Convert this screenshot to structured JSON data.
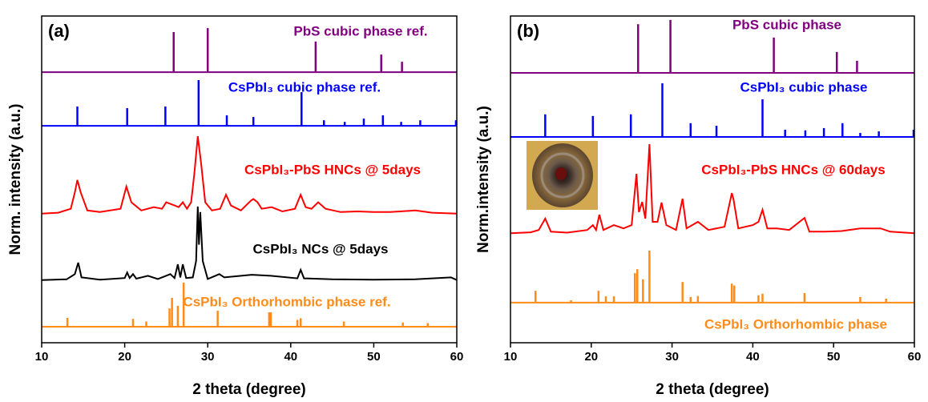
{
  "chart_data": [
    {
      "type": "line",
      "title": "(a)",
      "x_label": "2 theta (degree)",
      "y_label": "Norm. intensity (a.u.)",
      "xlim": [
        10,
        60
      ],
      "xticks": [
        10,
        20,
        30,
        40,
        50,
        60
      ],
      "ylim": [
        0,
        100
      ],
      "series": [
        {
          "name": "PbS cubic phase ref.",
          "color": "#800080",
          "kind": "stick",
          "baseline": 82.8,
          "x": [
            25.9,
            30.0,
            43.0,
            50.9,
            53.4
          ],
          "values": [
            95.1,
            96.3,
            92.2,
            88.2,
            86.0
          ]
        },
        {
          "name": "CsPbI₃ cubic phase ref.",
          "color": "#0000ff",
          "kind": "stick",
          "baseline": 66.4,
          "x": [
            14.3,
            20.3,
            24.9,
            28.9,
            32.3,
            35.5,
            41.3,
            44.0,
            46.5,
            48.8,
            51.1,
            53.3,
            55.6,
            59.9
          ],
          "values": [
            72.3,
            71.8,
            72.3,
            80.4,
            69.6,
            69.1,
            76.7,
            68.1,
            67.6,
            68.6,
            69.6,
            67.6,
            68.1,
            68.1
          ]
        },
        {
          "name": "CsPbI₃-PbS HNCs @ 5days",
          "color": "#ff0000",
          "kind": "line",
          "x": [
            10,
            12,
            13.5,
            14,
            14.3,
            14.7,
            15.5,
            17,
            19.5,
            20.2,
            20.8,
            22,
            23.5,
            24.5,
            25,
            25.5,
            26,
            26.5,
            27,
            27.5,
            28,
            28.4,
            28.8,
            29.2,
            29.7,
            30.5,
            31.5,
            32.2,
            32.8,
            34,
            35.2,
            35.5,
            36,
            36.5,
            37.7,
            39,
            40.5,
            41.2,
            41.8,
            42.5,
            43.3,
            44.2,
            46,
            48,
            50,
            52,
            55,
            57,
            60
          ],
          "values": [
            39.5,
            39.8,
            41,
            46,
            49.8,
            46,
            40.5,
            40,
            41,
            47.8,
            43,
            40.5,
            41.5,
            41,
            43,
            42.5,
            42,
            41.5,
            43,
            41,
            43,
            52,
            63.2,
            55,
            43,
            40.5,
            41,
            45.3,
            42,
            40.5,
            43.5,
            44,
            43,
            41,
            41.5,
            40.2,
            41,
            45.3,
            41.5,
            41,
            43,
            41,
            40,
            40.2,
            40,
            40,
            40.5,
            39.8,
            39.5
          ]
        },
        {
          "name": "CsPbI₃ NCs @ 5days",
          "color": "#000000",
          "kind": "line",
          "x": [
            10,
            13,
            14,
            14.4,
            14.8,
            17,
            20,
            20.3,
            20.6,
            21,
            21.4,
            22.8,
            24,
            25.5,
            26,
            26.4,
            26.7,
            27,
            27.4,
            28.2,
            28.6,
            28.8,
            28.95,
            29.1,
            29.4,
            30,
            31.4,
            32,
            35.3,
            37.6,
            40.8,
            41.2,
            41.6,
            45,
            50,
            55,
            59.3,
            60
          ],
          "values": [
            19.2,
            19.4,
            21,
            24.5,
            20,
            19.3,
            19.8,
            21.5,
            19.8,
            21,
            19.6,
            20.5,
            19.5,
            21,
            19.8,
            24,
            20,
            24,
            19.8,
            20,
            25,
            41.7,
            30,
            40,
            25,
            19.5,
            21,
            20,
            20.8,
            20.5,
            19.7,
            22.3,
            19.7,
            19.4,
            19.3,
            19.4,
            20,
            19.2
          ]
        },
        {
          "name": "CsPbI₃ Orthorhombic phase ref.",
          "color": "#ff8c1a",
          "kind": "stick",
          "baseline": 4.9,
          "x": [
            13.1,
            21.0,
            22.6,
            25.4,
            25.7,
            26.4,
            27.1,
            31.2,
            37.4,
            37.6,
            40.8,
            41.2,
            46.4,
            53.5,
            56.5
          ],
          "values": [
            7.6,
            7.3,
            6.5,
            10.5,
            13.7,
            11.3,
            18.4,
            9.8,
            9.3,
            9.3,
            7,
            7.5,
            6.5,
            6.2,
            6
          ]
        }
      ]
    },
    {
      "type": "line",
      "title": "(b)",
      "x_label": "2 theta (degree)",
      "y_label": "Norm.intensity (a.u.)",
      "xlim": [
        10,
        60
      ],
      "xticks": [
        10,
        20,
        30,
        40,
        50,
        60
      ],
      "ylim": [
        0,
        100
      ],
      "series": [
        {
          "name": "PbS cubic phase",
          "color": "#800080",
          "kind": "stick",
          "baseline": 82.6,
          "x": [
            25.8,
            29.8,
            42.6,
            50.4,
            52.9
          ],
          "values": [
            97.5,
            98.8,
            93.4,
            89,
            86.3
          ]
        },
        {
          "name": "CsPbI₃ cubic phase",
          "color": "#0000ff",
          "kind": "stick",
          "baseline": 63,
          "x": [
            14.3,
            20.2,
            24.9,
            28.8,
            32.3,
            35.5,
            41.2,
            44.0,
            46.5,
            48.8,
            51.1,
            53.3,
            55.6,
            59.9
          ],
          "values": [
            69.9,
            69.4,
            69.9,
            79.4,
            67.2,
            66.4,
            74.5,
            65.2,
            65,
            65.7,
            67.2,
            64.2,
            64.7,
            65.2
          ]
        },
        {
          "name": "CsPbI₃-PbS HNCs @  60days",
          "color": "#ff0000",
          "kind": "line",
          "x": [
            10,
            12.5,
            13.5,
            14.3,
            15,
            17,
            19.5,
            20.2,
            20.6,
            21,
            21.5,
            22.8,
            24,
            25,
            25.6,
            25.9,
            26.3,
            26.7,
            27.2,
            27.6,
            28.2,
            28.7,
            29.3,
            30.5,
            31.3,
            31.8,
            33.2,
            34.5,
            36.5,
            37.4,
            37.6,
            38.2,
            40,
            40.7,
            41.2,
            41.8,
            43,
            44.5,
            46.4,
            47,
            49,
            51,
            53.3,
            55.8,
            57,
            60
          ],
          "values": [
            33.5,
            33.8,
            34.5,
            38,
            34,
            33.7,
            34.5,
            36,
            34.5,
            39.2,
            34.5,
            36,
            35,
            36,
            51.7,
            40,
            43.1,
            38,
            60.8,
            37,
            37,
            42.9,
            36,
            34.5,
            44.1,
            35,
            37,
            34.5,
            35.5,
            45.8,
            44,
            35,
            36,
            37,
            40.7,
            35,
            35,
            34.5,
            38.2,
            34,
            34,
            34.2,
            35,
            35,
            34,
            33.5
          ]
        },
        {
          "name": "CsPbI₃ Orthorhombic phase",
          "color": "#ff8c1a",
          "kind": "stick",
          "baseline": 12.3,
          "x": [
            13.1,
            17.5,
            20.9,
            21.8,
            22.8,
            25.4,
            25.7,
            26.4,
            27.2,
            31.3,
            32.3,
            33.2,
            37.4,
            37.7,
            40.7,
            41.2,
            46.4,
            53.3,
            56.5
          ],
          "values": [
            15.9,
            13,
            15.9,
            14.2,
            14.2,
            21.3,
            22.5,
            19.4,
            28.2,
            18.6,
            14,
            14.3,
            18.1,
            17.5,
            14.5,
            15,
            15.2,
            14,
            13.5
          ]
        }
      ]
    }
  ]
}
